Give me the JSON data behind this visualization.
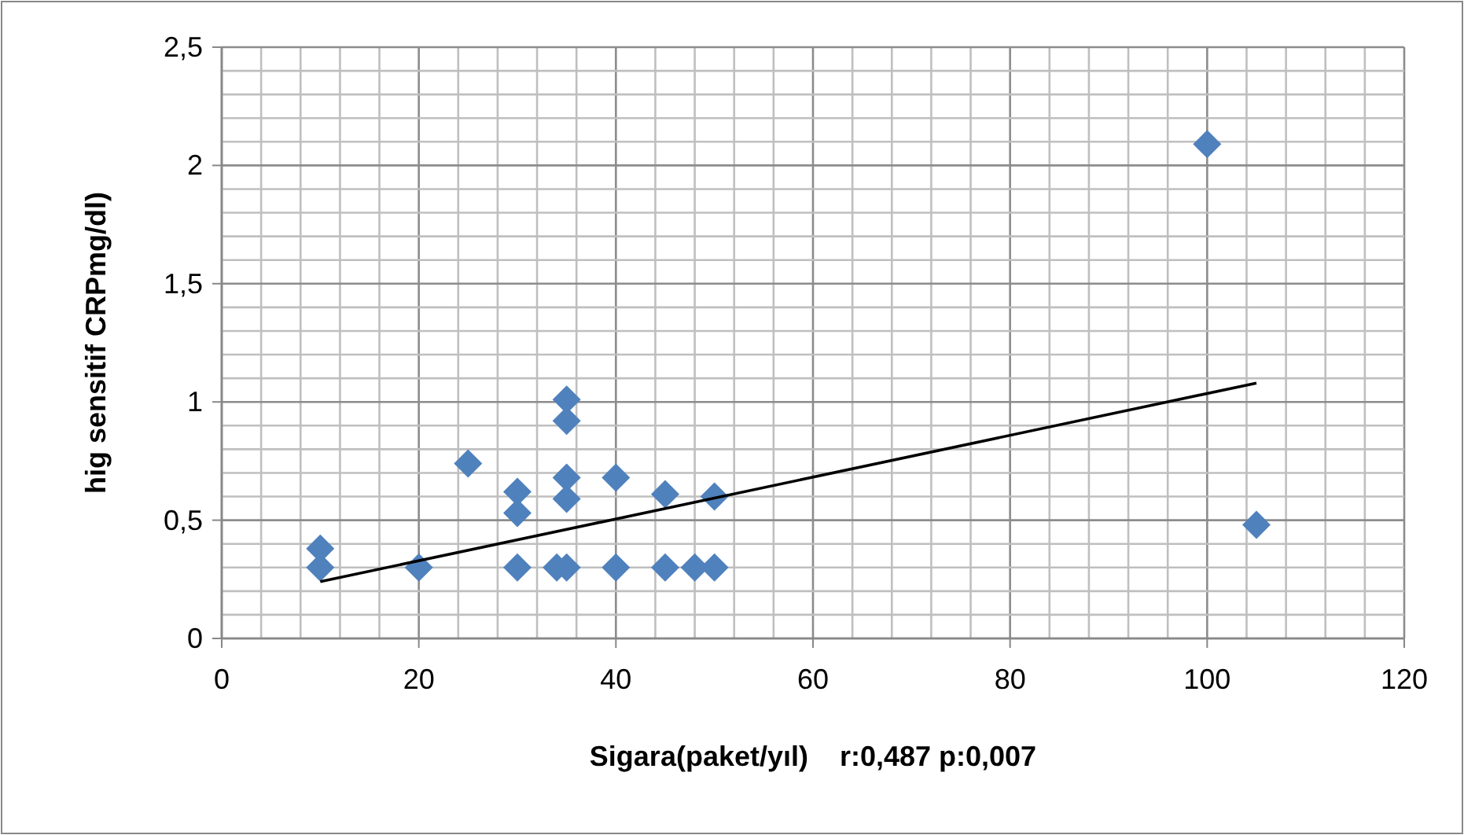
{
  "chart_data": {
    "type": "scatter",
    "xlabel": "Sigara(paket/yıl)    r:0,487 p:0,007",
    "ylabel": "hig sensitif CRPmg/dl)",
    "xlim": [
      0,
      120
    ],
    "ylim": [
      0,
      2.5
    ],
    "xticks": [
      0,
      {
        "value": 4,
        "label": null
      },
      {
        "value": 8,
        "label": null
      },
      {
        "value": 12,
        "label": null
      },
      {
        "value": 16,
        "label": null
      },
      20,
      {
        "value": 24,
        "label": null
      },
      {
        "value": 28,
        "label": null
      },
      {
        "value": 32,
        "label": null
      },
      {
        "value": 36,
        "label": null
      },
      40,
      {
        "value": 44,
        "label": null
      },
      {
        "value": 48,
        "label": null
      },
      {
        "value": 52,
        "label": null
      },
      {
        "value": 56,
        "label": null
      },
      60,
      {
        "value": 64,
        "label": null
      },
      {
        "value": 68,
        "label": null
      },
      {
        "value": 72,
        "label": null
      },
      {
        "value": 76,
        "label": null
      },
      80,
      {
        "value": 84,
        "label": null
      },
      {
        "value": 88,
        "label": null
      },
      {
        "value": 92,
        "label": null
      },
      {
        "value": 96,
        "label": null
      },
      100,
      {
        "value": 104,
        "label": null
      },
      {
        "value": 108,
        "label": null
      },
      {
        "value": 112,
        "label": null
      },
      {
        "value": 116,
        "label": null
      },
      120
    ],
    "yticks": [
      0,
      {
        "value": 0.1,
        "label": null
      },
      {
        "value": 0.2,
        "label": null
      },
      {
        "value": 0.3,
        "label": null
      },
      {
        "value": 0.4,
        "label": null
      },
      {
        "value": 0.5,
        "label": "0,5"
      },
      {
        "value": 0.6,
        "label": null
      },
      {
        "value": 0.7,
        "label": null
      },
      {
        "value": 0.8,
        "label": null
      },
      {
        "value": 0.9,
        "label": null
      },
      1,
      {
        "value": 1.1,
        "label": null
      },
      {
        "value": 1.2,
        "label": null
      },
      {
        "value": 1.3,
        "label": null
      },
      {
        "value": 1.4,
        "label": null
      },
      {
        "value": 1.5,
        "label": "1,5"
      },
      {
        "value": 1.6,
        "label": null
      },
      {
        "value": 1.7,
        "label": null
      },
      {
        "value": 1.8,
        "label": null
      },
      {
        "value": 1.9,
        "label": null
      },
      2,
      {
        "value": 2.1,
        "label": null
      },
      {
        "value": 2.2,
        "label": null
      },
      {
        "value": 2.3,
        "label": null
      },
      {
        "value": 2.4,
        "label": null
      },
      {
        "value": 2.5,
        "label": "2,5"
      }
    ],
    "grid": true,
    "series": [
      {
        "marker": "diamond",
        "color": "#4f81bd",
        "x": [
          10,
          10,
          20,
          25,
          30,
          30,
          30,
          34,
          35,
          35,
          35,
          35,
          35,
          40,
          40,
          45,
          45,
          48,
          50,
          50,
          100,
          105
        ],
        "values": [
          0.38,
          0.3,
          0.3,
          0.74,
          0.62,
          0.53,
          0.3,
          0.3,
          0.3,
          1.01,
          0.92,
          0.68,
          0.59,
          0.68,
          0.3,
          0.61,
          0.3,
          0.3,
          0.6,
          0.3,
          2.09,
          0.48
        ]
      },
      {
        "type": "line",
        "color": "#000000",
        "x": [
          10,
          105
        ],
        "values": [
          0.24,
          1.08
        ]
      }
    ]
  }
}
